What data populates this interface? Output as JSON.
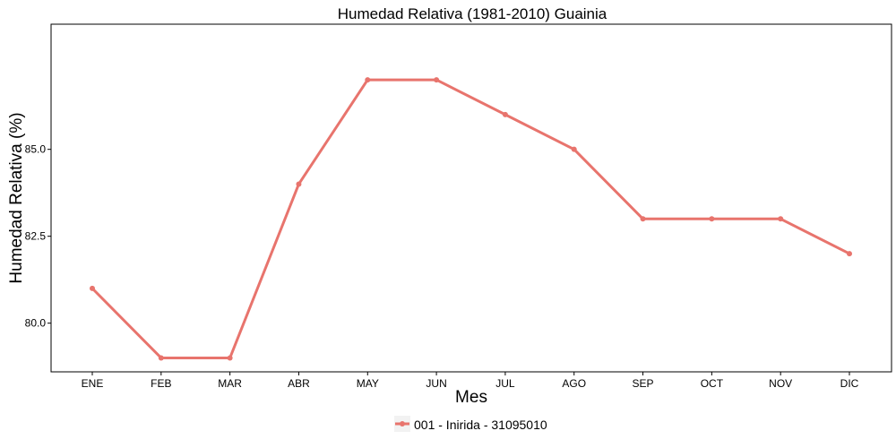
{
  "chart_data": {
    "type": "line",
    "title": "Humedad Relativa (1981-2010)  Guainia",
    "xlabel": "Mes",
    "ylabel": "Humedad Relativa  (%)",
    "categories": [
      "ENE",
      "FEB",
      "MAR",
      "ABR",
      "MAY",
      "JUN",
      "JUL",
      "AGO",
      "SEP",
      "OCT",
      "NOV",
      "DIC"
    ],
    "y_ticks": [
      80.0,
      82.5,
      85.0
    ],
    "y_tick_labels": [
      "80.0",
      "82.5",
      "85.0"
    ],
    "ylim": [
      78.6,
      88.6
    ],
    "grid": false,
    "legend_position": "bottom",
    "series": [
      {
        "name": "001 - Inirida - 31095010",
        "color": "#e8746d",
        "values": [
          81,
          79,
          79,
          84,
          87,
          87,
          86,
          85,
          83,
          83,
          83,
          82
        ]
      }
    ]
  }
}
